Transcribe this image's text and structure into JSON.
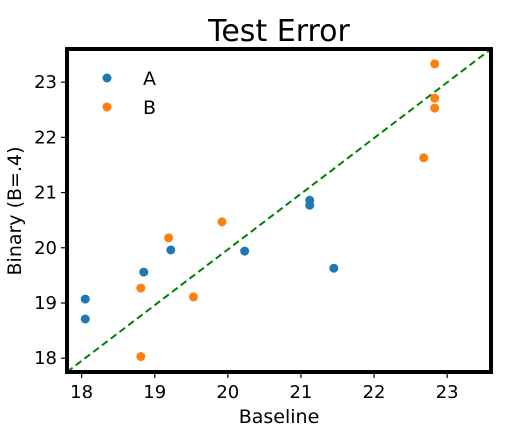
{
  "chart_data": {
    "type": "scatter",
    "title": "Test Error",
    "xlabel": "Baseline",
    "ylabel": "Binary (B=.4)",
    "xlim": [
      17.8,
      23.6
    ],
    "ylim": [
      17.75,
      23.6
    ],
    "xticks": [
      "18",
      "19",
      "20",
      "21",
      "22",
      "23"
    ],
    "yticks": [
      "18",
      "19",
      "20",
      "21",
      "22",
      "23"
    ],
    "grid": false,
    "legend": "top-left",
    "reference_line": {
      "style": "dashed",
      "color": "#008000",
      "from": [
        17.8,
        17.75
      ],
      "to": [
        23.6,
        23.6
      ]
    },
    "series": [
      {
        "name": "A",
        "color": "#1f77b4",
        "points": [
          [
            18.05,
            19.07
          ],
          [
            18.05,
            18.71
          ],
          [
            18.85,
            19.56
          ],
          [
            19.22,
            19.96
          ],
          [
            20.23,
            19.94
          ],
          [
            21.12,
            20.86
          ],
          [
            21.12,
            20.77
          ],
          [
            21.45,
            19.63
          ]
        ]
      },
      {
        "name": "B",
        "color": "#ff7f0e",
        "points": [
          [
            18.81,
            18.03
          ],
          [
            18.81,
            19.27
          ],
          [
            19.19,
            20.18
          ],
          [
            19.53,
            19.11
          ],
          [
            19.92,
            20.47
          ],
          [
            22.68,
            21.63
          ],
          [
            22.83,
            23.33
          ],
          [
            22.83,
            22.71
          ],
          [
            22.83,
            22.53
          ]
        ]
      }
    ]
  }
}
